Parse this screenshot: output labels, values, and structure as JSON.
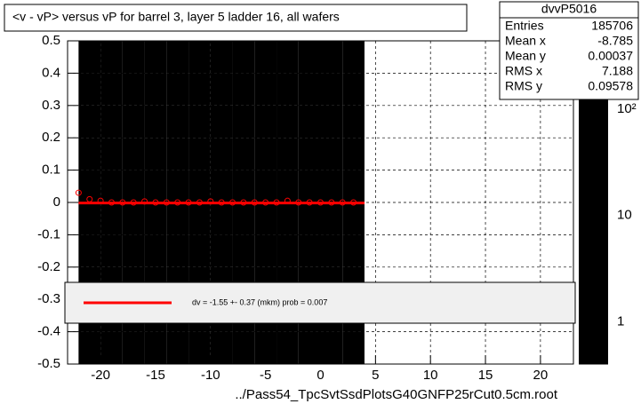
{
  "chart_data": {
    "type": "heatmap",
    "title": "<v - vP>       versus   vP for barrel 3, layer 5 ladder 16, all wafers",
    "x_label": "../Pass54_TpcSvtSsdPlotsG40GNFP25rCut0.5cm.root",
    "xlim": [
      -23,
      23
    ],
    "xticks": [
      -20,
      -15,
      -10,
      -5,
      0,
      5,
      10,
      15,
      20
    ],
    "ylim": [
      -0.5,
      0.5
    ],
    "yticks": [
      -0.5,
      -0.4,
      -0.3,
      -0.2,
      -0.1,
      0,
      0.1,
      0.2,
      0.3,
      0.4,
      0.5
    ],
    "zlim": [
      0.4,
      440
    ],
    "zticks": [
      1,
      10,
      {
        "value": 100,
        "label": "10²"
      }
    ],
    "log_z": true,
    "grid": true,
    "x_bins": [
      -22,
      -20,
      -18,
      -16,
      -14,
      -12,
      -10,
      -8,
      -6,
      -4,
      -2,
      0,
      2,
      4
    ],
    "y_bins": [
      -0.5,
      -0.4,
      -0.3,
      -0.2,
      -0.1,
      0,
      0.1,
      0.2,
      0.3,
      0.4,
      0.5
    ],
    "density": [
      [
        3,
        3,
        3,
        2,
        3,
        3,
        2,
        3,
        3,
        2,
        3,
        3,
        3
      ],
      [
        4,
        4,
        4,
        3,
        4,
        4,
        3,
        4,
        4,
        3,
        4,
        4,
        4
      ],
      [
        5,
        5,
        5,
        4,
        5,
        5,
        4,
        5,
        5,
        4,
        5,
        5,
        5
      ],
      [
        9,
        8,
        9,
        7,
        9,
        8,
        7,
        9,
        8,
        7,
        8,
        9,
        8
      ],
      [
        30,
        35,
        40,
        25,
        40,
        38,
        25,
        40,
        38,
        25,
        38,
        35,
        30
      ],
      [
        30,
        35,
        40,
        25,
        40,
        38,
        25,
        40,
        38,
        25,
        38,
        35,
        30
      ],
      [
        9,
        8,
        9,
        7,
        9,
        8,
        7,
        9,
        8,
        7,
        8,
        9,
        8
      ],
      [
        5,
        5,
        5,
        4,
        5,
        5,
        4,
        5,
        5,
        4,
        5,
        5,
        5
      ],
      [
        4,
        4,
        4,
        3,
        4,
        4,
        3,
        4,
        4,
        3,
        4,
        4,
        4
      ],
      [
        3,
        3,
        3,
        2,
        3,
        3,
        2,
        3,
        3,
        2,
        3,
        3,
        3
      ]
    ],
    "profile": {
      "color": "#ff0000",
      "x": [
        -22,
        -21,
        -20,
        -19,
        -18,
        -17,
        -16,
        -15,
        -14,
        -13,
        -12,
        -11,
        -10,
        -9,
        -8,
        -7,
        -6,
        -5,
        -4,
        -3,
        -2,
        -1,
        0,
        1,
        2,
        3
      ],
      "values": [
        0.03,
        0.01,
        0.005,
        0,
        0,
        0,
        0.003,
        0,
        0,
        0,
        0,
        0,
        0.003,
        0,
        0,
        0,
        0,
        0,
        0,
        0.005,
        0,
        0,
        0,
        0,
        0,
        0
      ]
    },
    "fit": {
      "color": "#ff0000",
      "x": [
        -22,
        4
      ],
      "values": [
        -0.00155,
        -0.00155
      ],
      "label": "dv =    -1.55 +-   0.37 (mkm) prob = 0.007"
    },
    "stats": {
      "title": "dvvP5016",
      "rows": [
        [
          "Entries",
          185706
        ],
        [
          "Mean x",
          -8.785
        ],
        [
          "Mean y",
          0.00037
        ],
        [
          "RMS x",
          7.188
        ],
        [
          "RMS y",
          0.09578
        ]
      ]
    }
  }
}
